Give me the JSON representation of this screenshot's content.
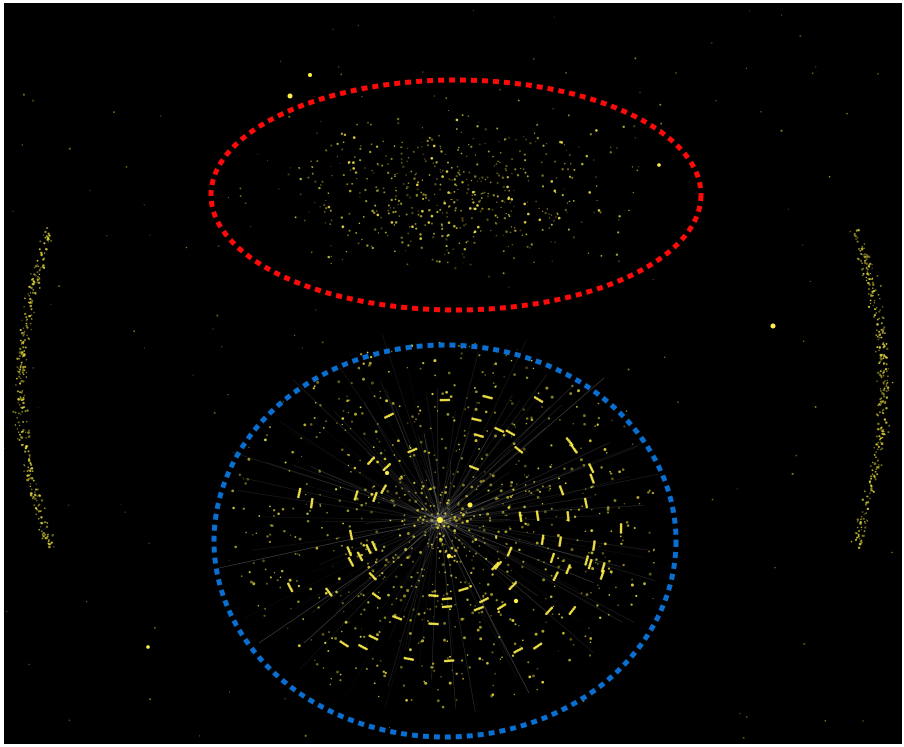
{
  "colors": {
    "background": "#000000",
    "frame": "#ffffff",
    "points": "#e6dc3c",
    "bright_points": "#fff04a",
    "edges": "#cfcfcf",
    "upper_marker": "#ff0a0a",
    "lower_marker": "#0a6fd0"
  },
  "markers": [
    {
      "name": "upper-region",
      "shape": "dotted-ellipse",
      "color": "#ff0a0a"
    },
    {
      "name": "lower-region",
      "shape": "dotted-ellipse",
      "color": "#0a6fd0"
    }
  ]
}
